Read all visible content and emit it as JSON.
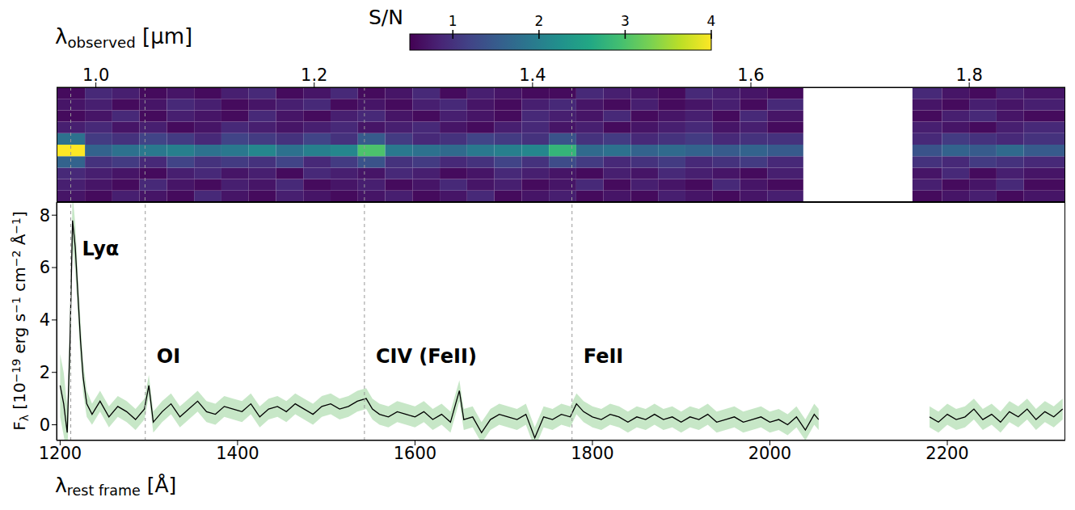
{
  "chart_data": [
    {
      "type": "heatmap",
      "xlabel": "λobserved [μm]",
      "xlim": [
        0.964,
        1.888
      ],
      "xticks": [
        {
          "value": 1,
          "label": "1.0"
        },
        1.2,
        1.4,
        1.6,
        1.8
      ],
      "ylim": [
        0,
        10
      ],
      "tick_labels": "x",
      "x_bins": [
        0.964,
        0.99,
        1.015,
        1.04,
        1.065,
        1.09,
        1.115,
        1.14,
        1.165,
        1.19,
        1.215,
        1.24,
        1.265,
        1.29,
        1.315,
        1.34,
        1.365,
        1.39,
        1.415,
        1.44,
        1.465,
        1.49,
        1.515,
        1.54,
        1.565,
        1.59,
        1.615,
        1.648,
        1.748,
        1.775,
        1.8,
        1.825,
        1.85,
        1.888
      ],
      "y_bins": [
        0,
        1,
        2,
        3,
        4,
        5,
        6,
        7,
        8,
        9,
        10
      ],
      "cells": [
        [
          0.7,
          0.6,
          0.8,
          0.7,
          0.6,
          0.9,
          0.7,
          0.6,
          0.8,
          0.7,
          0.6,
          0.7,
          0.8,
          0.6,
          0.7,
          0.9,
          0.6,
          0.7,
          0.8,
          0.6,
          0.7,
          0.6,
          0.8,
          0.7,
          0.6,
          0.7,
          0.8,
          null,
          0.6,
          0.7,
          0.8,
          0.6,
          0.7
        ],
        [
          0.8,
          0.7,
          0.6,
          0.9,
          0.7,
          0.6,
          0.8,
          0.7,
          0.9,
          0.6,
          0.7,
          0.8,
          0.6,
          0.7,
          0.9,
          0.7,
          0.8,
          0.6,
          0.7,
          0.9,
          0.6,
          0.8,
          0.7,
          0.6,
          0.9,
          0.7,
          0.6,
          null,
          0.8,
          0.6,
          0.7,
          0.9,
          0.6
        ],
        [
          0.9,
          0.8,
          0.7,
          0.6,
          0.8,
          0.9,
          0.7,
          0.8,
          0.6,
          0.9,
          0.8,
          0.7,
          0.9,
          0.8,
          0.6,
          0.7,
          0.9,
          0.8,
          0.7,
          0.6,
          0.8,
          0.7,
          0.9,
          0.8,
          0.7,
          0.6,
          0.8,
          null,
          0.7,
          0.9,
          0.6,
          0.8,
          0.7
        ],
        [
          1.6,
          1.0,
          1.1,
          0.9,
          1.2,
          1.0,
          1.1,
          1.0,
          1.2,
          0.9,
          1.1,
          1.4,
          1.0,
          1.1,
          0.9,
          1.0,
          1.2,
          1.0,
          1.3,
          1.1,
          0.9,
          1.0,
          1.1,
          0.9,
          1.0,
          1.1,
          0.9,
          null,
          1.0,
          0.9,
          1.1,
          1.0,
          0.9
        ],
        [
          4.0,
          1.6,
          1.8,
          1.9,
          2.0,
          1.8,
          1.9,
          2.1,
          1.8,
          2.0,
          2.1,
          3.0,
          1.9,
          1.8,
          1.7,
          1.9,
          2.0,
          2.1,
          2.8,
          1.7,
          1.8,
          1.6,
          1.7,
          1.6,
          1.5,
          1.6,
          1.5,
          null,
          1.4,
          1.6,
          1.5,
          1.7,
          1.5
        ],
        [
          1.8,
          1.1,
          1.0,
          1.2,
          1.1,
          0.9,
          1.2,
          1.1,
          1.0,
          1.2,
          1.0,
          1.5,
          1.1,
          0.9,
          1.0,
          1.2,
          1.1,
          1.0,
          1.4,
          1.0,
          1.1,
          0.9,
          1.0,
          1.1,
          0.9,
          1.0,
          1.0,
          null,
          0.9,
          1.1,
          1.0,
          0.9,
          1.0
        ],
        [
          0.8,
          0.9,
          0.7,
          0.8,
          0.6,
          0.7,
          0.9,
          0.8,
          0.7,
          0.8,
          0.9,
          0.7,
          0.8,
          0.9,
          0.7,
          0.6,
          0.8,
          0.9,
          0.7,
          0.8,
          0.6,
          0.7,
          0.8,
          0.9,
          0.7,
          0.8,
          0.6,
          null,
          0.8,
          0.7,
          0.6,
          0.8,
          0.9
        ],
        [
          0.6,
          0.7,
          0.9,
          0.6,
          0.8,
          0.7,
          0.6,
          0.9,
          0.7,
          0.6,
          0.8,
          0.9,
          0.7,
          0.6,
          0.8,
          0.7,
          0.6,
          0.9,
          0.8,
          0.7,
          0.9,
          0.6,
          0.7,
          0.8,
          0.6,
          0.9,
          0.7,
          null,
          0.6,
          0.8,
          0.9,
          0.7,
          0.6
        ],
        [
          0.7,
          0.8,
          0.6,
          0.7,
          0.9,
          0.8,
          0.6,
          0.7,
          0.8,
          0.9,
          0.6,
          0.7,
          0.6,
          0.8,
          0.9,
          0.7,
          0.6,
          0.8,
          0.9,
          0.7,
          0.6,
          0.8,
          0.6,
          0.7,
          0.8,
          0.6,
          0.9,
          null,
          0.7,
          0.6,
          0.8,
          0.7,
          0.8
        ],
        [
          0.6,
          0.9,
          0.8,
          0.6,
          0.7,
          0.6,
          0.8,
          0.9,
          0.6,
          0.7,
          0.9,
          0.6,
          0.7,
          0.9,
          0.6,
          0.8,
          0.7,
          0.6,
          0.6,
          0.9,
          0.8,
          0.7,
          0.6,
          0.9,
          0.8,
          0.7,
          0.6,
          null,
          0.9,
          0.7,
          0.6,
          0.8,
          0.7
        ]
      ],
      "colorbar": {
        "label": "S/N",
        "range": [
          0.5,
          4
        ],
        "ticks": [
          1,
          2,
          3,
          4
        ]
      },
      "reference_x": [
        0.977,
        1.045,
        1.246,
        1.436
      ],
      "line_style": "dashed"
    },
    {
      "type": "line",
      "xlabel": "λrest frame [Å]",
      "ylabel": "Fλ [10−19 erg s−1 cm−2 Å−1]",
      "xlim": [
        1196,
        2333
      ],
      "xticks": [
        1200,
        1400,
        1600,
        1800,
        2000,
        2200
      ],
      "ylim": [
        -0.6,
        8.5
      ],
      "yticks": [
        0,
        2,
        4,
        6,
        8
      ],
      "color": "#000000",
      "line_style": "dashed",
      "x": [
        1200,
        1204,
        1208,
        1211,
        1214,
        1217,
        1220,
        1223,
        1226,
        1230,
        1236,
        1245,
        1255,
        1265,
        1275,
        1285,
        1295,
        1300,
        1305,
        1315,
        1325,
        1335,
        1345,
        1355,
        1365,
        1375,
        1385,
        1395,
        1405,
        1415,
        1425,
        1435,
        1445,
        1455,
        1465,
        1475,
        1485,
        1495,
        1505,
        1515,
        1525,
        1535,
        1545,
        1552,
        1560,
        1570,
        1580,
        1590,
        1600,
        1610,
        1620,
        1630,
        1640,
        1650,
        1655,
        1665,
        1675,
        1685,
        1695,
        1705,
        1715,
        1725,
        1735,
        1745,
        1755,
        1765,
        1775,
        1782,
        1790,
        1800,
        1810,
        1820,
        1830,
        1840,
        1850,
        1860,
        1870,
        1880,
        1890,
        1900,
        1910,
        1920,
        1930,
        1940,
        1950,
        1960,
        1970,
        1980,
        1990,
        2000,
        2010,
        2020,
        2030,
        2040,
        2050,
        2055,
        2115,
        2180,
        2190,
        2200,
        2210,
        2220,
        2230,
        2240,
        2250,
        2260,
        2270,
        2280,
        2290,
        2300,
        2310,
        2320,
        2330
      ],
      "values": [
        1.5,
        0.8,
        -0.3,
        3.0,
        7.8,
        6.8,
        5.0,
        3.2,
        1.8,
        0.8,
        0.4,
        0.9,
        0.3,
        0.7,
        0.5,
        0.2,
        0.6,
        1.5,
        0.1,
        0.5,
        0.8,
        0.3,
        0.6,
        0.9,
        0.5,
        0.4,
        0.7,
        0.6,
        0.5,
        0.8,
        0.3,
        0.6,
        0.7,
        0.5,
        0.8,
        0.6,
        0.4,
        0.7,
        0.8,
        0.6,
        0.7,
        0.9,
        1.0,
        0.6,
        0.4,
        0.3,
        0.5,
        0.4,
        0.3,
        0.5,
        0.2,
        0.4,
        0.1,
        1.3,
        0.2,
        0.3,
        -0.3,
        0.2,
        0.4,
        0.3,
        0.2,
        0.4,
        -0.5,
        0.3,
        0.2,
        0.4,
        0.3,
        0.8,
        0.5,
        0.3,
        0.2,
        0.4,
        0.3,
        0.1,
        0.3,
        0.2,
        0.4,
        0.2,
        0.3,
        0.1,
        0.3,
        0.2,
        0.4,
        0.1,
        0.2,
        0.3,
        0.1,
        0.2,
        0.3,
        0.1,
        0.2,
        0.0,
        0.3,
        -0.2,
        0.4,
        0.2,
        null,
        0.3,
        0.1,
        0.4,
        0.2,
        0.3,
        0.6,
        0.2,
        0.4,
        0.1,
        0.5,
        0.3,
        0.6,
        0.2,
        0.5,
        0.3,
        0.6
      ],
      "errors": [
        1.2,
        1.2,
        1.0,
        1.0,
        1.0,
        0.9,
        0.8,
        0.7,
        0.6,
        0.5,
        0.4,
        0.4,
        0.4,
        0.4,
        0.4,
        0.4,
        0.4,
        0.4,
        0.4,
        0.4,
        0.4,
        0.4,
        0.4,
        0.4,
        0.4,
        0.4,
        0.4,
        0.4,
        0.4,
        0.4,
        0.4,
        0.4,
        0.4,
        0.4,
        0.4,
        0.4,
        0.4,
        0.4,
        0.4,
        0.4,
        0.4,
        0.4,
        0.4,
        0.4,
        0.4,
        0.4,
        0.4,
        0.4,
        0.4,
        0.4,
        0.4,
        0.4,
        0.4,
        0.4,
        0.4,
        0.4,
        0.4,
        0.4,
        0.4,
        0.4,
        0.4,
        0.4,
        0.4,
        0.4,
        0.4,
        0.4,
        0.4,
        0.4,
        0.4,
        0.4,
        0.4,
        0.4,
        0.4,
        0.4,
        0.4,
        0.4,
        0.4,
        0.4,
        0.4,
        0.4,
        0.4,
        0.4,
        0.4,
        0.4,
        0.4,
        0.4,
        0.4,
        0.4,
        0.4,
        0.4,
        0.4,
        0.4,
        0.4,
        0.4,
        0.4,
        0.4,
        null,
        0.4,
        0.4,
        0.4,
        0.4,
        0.4,
        0.4,
        0.4,
        0.4,
        0.4,
        0.4,
        0.4,
        0.4,
        0.4,
        0.4,
        0.4,
        0.4
      ],
      "annotations": [
        {
          "x": 1212,
          "text": "Lyα"
        },
        {
          "x": 1296,
          "text": "OI"
        },
        {
          "x": 1543,
          "text": "CIV (FeII)"
        },
        {
          "x": 1777,
          "text": "FeII"
        }
      ]
    }
  ]
}
